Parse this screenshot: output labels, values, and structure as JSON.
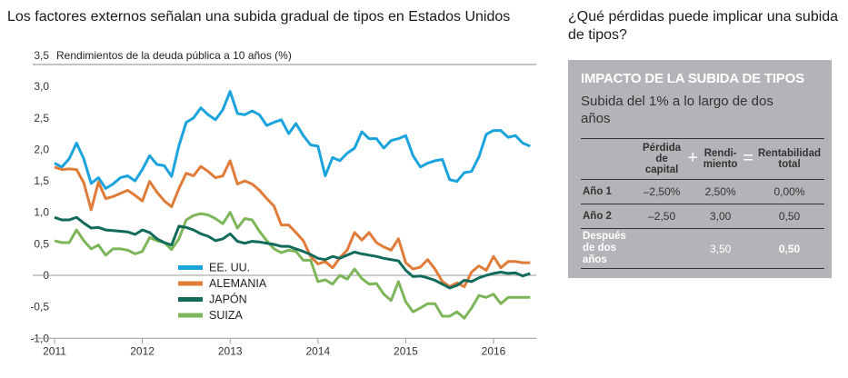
{
  "chart_title": "Los factores externos señalan una subida gradual de tipos en Estados Unidos",
  "side": {
    "title": "¿Qué pérdidas puede implicar una subida de tipos?",
    "panel_heading": "IMPACTO DE LA SUBIDA DE TIPOS",
    "panel_subtitle": "Subida del 1% a lo largo de dos años",
    "table": {
      "headers": [
        "",
        "Pérdida de capital",
        "Rendi-miento",
        "Rentabilidad total"
      ],
      "operators": [
        "+",
        "="
      ],
      "rows": [
        {
          "label": "Año 1",
          "values": [
            "–2,50%",
            "2,50%",
            "0,00%"
          ]
        },
        {
          "label": "Año 2",
          "values": [
            "–2,50",
            "3,00",
            "0,50"
          ]
        },
        {
          "label": "Después de dos años",
          "values": [
            "",
            "3,50",
            "0,50"
          ]
        }
      ]
    }
  },
  "chart_data": {
    "type": "line",
    "title": "Los factores externos señalan una subida gradual de tipos en Estados Unidos",
    "ylabel": "Rendimientos de la deuda pública a 10 años (%)",
    "xlabel": "",
    "ylim": [
      -1.0,
      3.5
    ],
    "yticks": [
      "3,5",
      "3,0",
      "2,5",
      "2,0",
      "1,5",
      "1,0",
      "0,5",
      "0",
      "-0,5",
      "-1,0"
    ],
    "ytick_values": [
      3.5,
      3.0,
      2.5,
      2.0,
      1.5,
      1.0,
      0.5,
      0,
      -0.5,
      -1.0
    ],
    "xticks": [
      "2011",
      "2012",
      "2013",
      "2014",
      "2015",
      "2016"
    ],
    "x_start": "2011-01",
    "x_step": "month",
    "x_range": [
      2011.0,
      2016.5
    ],
    "legend_position": "bottom-center",
    "grid": false,
    "series": [
      {
        "name": "EE. UU.",
        "color": "#1aa3dd",
        "values": [
          1.78,
          1.72,
          1.85,
          2.1,
          1.85,
          1.46,
          1.55,
          1.38,
          1.45,
          1.55,
          1.58,
          1.5,
          1.68,
          1.9,
          1.76,
          1.74,
          1.57,
          2.06,
          2.43,
          2.5,
          2.66,
          2.55,
          2.47,
          2.63,
          2.92,
          2.57,
          2.55,
          2.61,
          2.55,
          2.38,
          2.43,
          2.47,
          2.25,
          2.41,
          2.22,
          2.07,
          2.05,
          1.58,
          1.87,
          1.82,
          1.94,
          2.02,
          2.28,
          2.17,
          2.17,
          2.02,
          2.14,
          2.17,
          2.22,
          1.9,
          1.72,
          1.78,
          1.82,
          1.84,
          1.52,
          1.49,
          1.63,
          1.65,
          1.88,
          2.24,
          2.3,
          2.3,
          2.19,
          2.22,
          2.1,
          2.05
        ]
      },
      {
        "name": "ALEMANIA",
        "color": "#e07b39",
        "values": [
          1.72,
          1.68,
          1.69,
          1.68,
          1.47,
          1.04,
          1.48,
          1.22,
          1.25,
          1.3,
          1.35,
          1.27,
          1.18,
          1.49,
          1.32,
          1.18,
          1.09,
          1.38,
          1.62,
          1.58,
          1.73,
          1.65,
          1.55,
          1.58,
          1.82,
          1.45,
          1.5,
          1.45,
          1.35,
          1.22,
          1.1,
          0.8,
          0.8,
          0.68,
          0.55,
          0.3,
          0.18,
          0.22,
          0.12,
          0.28,
          0.4,
          0.68,
          0.56,
          0.68,
          0.52,
          0.45,
          0.4,
          0.58,
          0.2,
          0.1,
          0.13,
          0.25,
          0.1,
          -0.1,
          -0.18,
          -0.12,
          -0.18,
          0.05,
          0.15,
          0.08,
          0.3,
          0.12,
          0.22,
          0.22,
          0.2,
          0.2
        ]
      },
      {
        "name": "JAPÓN",
        "color": "#116a5a",
        "values": [
          0.92,
          0.88,
          0.88,
          0.92,
          0.83,
          0.75,
          0.76,
          0.72,
          0.71,
          0.7,
          0.69,
          0.65,
          0.72,
          0.68,
          0.58,
          0.52,
          0.48,
          0.78,
          0.76,
          0.72,
          0.66,
          0.62,
          0.55,
          0.58,
          0.66,
          0.54,
          0.51,
          0.54,
          0.53,
          0.51,
          0.49,
          0.46,
          0.46,
          0.42,
          0.38,
          0.33,
          0.27,
          0.25,
          0.3,
          0.27,
          0.32,
          0.37,
          0.34,
          0.32,
          0.3,
          0.27,
          0.25,
          0.23,
          0.08,
          -0.02,
          -0.01,
          -0.04,
          -0.08,
          -0.14,
          -0.2,
          -0.16,
          -0.08,
          -0.1,
          -0.04,
          0.0,
          0.03,
          0.05,
          0.03,
          0.04,
          -0.01,
          0.03
        ]
      },
      {
        "name": "SUIZA",
        "color": "#7db65a",
        "values": [
          0.55,
          0.52,
          0.52,
          0.72,
          0.55,
          0.42,
          0.48,
          0.32,
          0.42,
          0.42,
          0.4,
          0.34,
          0.38,
          0.6,
          0.55,
          0.52,
          0.41,
          0.58,
          0.88,
          0.95,
          0.98,
          0.96,
          0.9,
          0.82,
          1.0,
          0.75,
          0.9,
          0.88,
          0.7,
          0.55,
          0.42,
          0.36,
          0.4,
          0.38,
          0.24,
          0.24,
          -0.1,
          -0.07,
          -0.14,
          0.0,
          -0.06,
          0.1,
          -0.05,
          -0.14,
          -0.13,
          -0.3,
          -0.4,
          -0.1,
          -0.42,
          -0.58,
          -0.52,
          -0.45,
          -0.45,
          -0.65,
          -0.65,
          -0.58,
          -0.68,
          -0.52,
          -0.32,
          -0.35,
          -0.3,
          -0.45,
          -0.35,
          -0.35,
          -0.35,
          -0.35
        ]
      }
    ]
  }
}
